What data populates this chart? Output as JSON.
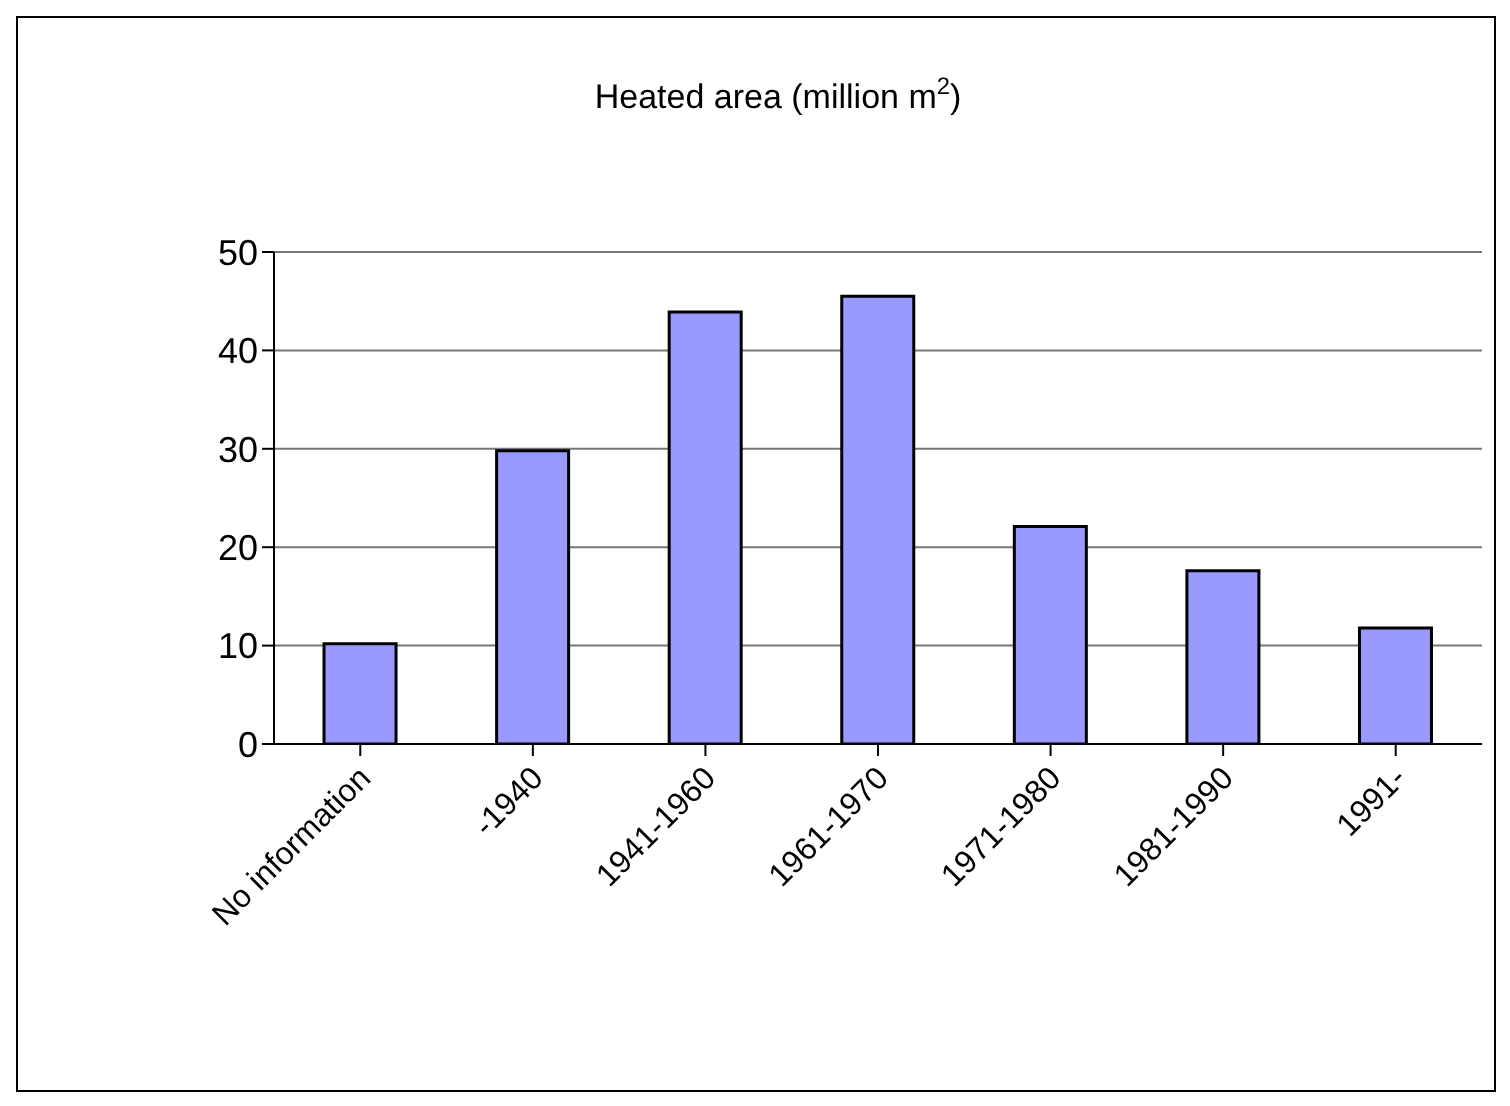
{
  "chart_data": {
    "type": "bar",
    "title": "Heated area (million m$^{2}$)",
    "categories": [
      "No information",
      "-1940",
      "1941-1960",
      "1961-1970",
      "1971-1980",
      "1981-1990",
      "1991-"
    ],
    "values": [
      10.2,
      29.8,
      43.9,
      45.5,
      22.1,
      17.6,
      11.8
    ],
    "color": "#9999ff",
    "ylim": [
      0,
      50
    ],
    "yticks": [
      0,
      10,
      20,
      30,
      40,
      50
    ],
    "grid": "y"
  }
}
